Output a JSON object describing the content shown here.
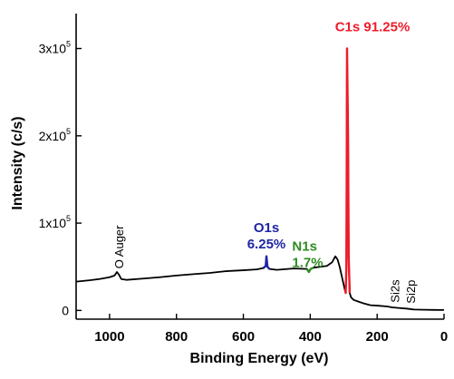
{
  "chart_data": {
    "type": "line",
    "title": "",
    "xlabel": "Binding Energy (eV)",
    "ylabel": "Intensity (c/s)",
    "xlim": [
      1100,
      0
    ],
    "x_reversed": true,
    "ylim": [
      -10000,
      340000
    ],
    "x_ticks": [
      {
        "value": 1000,
        "label": "1000"
      },
      {
        "value": 800,
        "label": "800"
      },
      {
        "value": 600,
        "label": "600"
      },
      {
        "value": 400,
        "label": "400"
      },
      {
        "value": 200,
        "label": "200"
      },
      {
        "value": 0,
        "label": "0"
      }
    ],
    "y_ticks": [
      {
        "value": 0,
        "label": "0",
        "exp": ""
      },
      {
        "value": 100000,
        "label": "1x10",
        "exp": "5"
      },
      {
        "value": 200000,
        "label": "2x10",
        "exp": "5"
      },
      {
        "value": 300000,
        "label": "3x10",
        "exp": "5"
      }
    ],
    "grid": false,
    "series": [
      {
        "color": "#000000",
        "x": [
          1100,
          1060,
          1030,
          1000,
          985,
          978,
          972,
          965,
          950,
          900,
          850,
          800,
          750,
          700,
          650,
          600,
          560,
          540,
          533,
          531,
          528,
          522,
          500,
          450,
          410,
          404,
          400,
          396,
          390,
          370,
          350,
          335,
          325,
          318,
          312,
          305,
          298,
          294,
          292,
          291,
          290,
          287,
          285,
          282,
          278,
          270,
          255,
          240,
          220,
          200,
          170,
          155,
          140,
          110,
          99,
          90,
          60,
          30,
          0
        ],
        "y": [
          33000,
          34500,
          36000,
          38000,
          40000,
          44000,
          41000,
          36000,
          35000,
          36500,
          38000,
          40000,
          41500,
          43000,
          45000,
          46000,
          47000,
          48500,
          51000,
          62000,
          50000,
          47500,
          46500,
          48000,
          47500,
          44000,
          47000,
          48000,
          49000,
          50000,
          51000,
          55000,
          62000,
          58000,
          50000,
          38000,
          26000,
          20000,
          50000,
          150000,
          300000,
          200000,
          60000,
          20000,
          15000,
          12000,
          10000,
          8000,
          6000,
          5500,
          4500,
          3500,
          3000,
          2000,
          1500,
          1000,
          800,
          600,
          500
        ]
      },
      {
        "color": "#1f25a3",
        "x": [
          540,
          533,
          531,
          528,
          522
        ],
        "y": [
          48500,
          51000,
          62000,
          50000,
          47500
        ]
      },
      {
        "color": "#2e8b22",
        "x": [
          410,
          404,
          400,
          396,
          390
        ],
        "y": [
          47500,
          44000,
          47000,
          48000,
          49000
        ]
      },
      {
        "color": "#ee1c2a",
        "x": [
          296,
          294,
          292,
          291,
          290,
          287,
          285,
          282
        ],
        "y": [
          24000,
          20000,
          50000,
          150000,
          300000,
          200000,
          60000,
          20000
        ]
      }
    ],
    "annotations": [
      {
        "id": "c1s",
        "lines": [
          "C1s 91.25%"
        ],
        "color": "#ee1c2a",
        "x": 290,
        "y": 305000,
        "rotate": false
      },
      {
        "id": "o1s",
        "lines": [
          "O1s",
          "6.25%"
        ],
        "color": "#1f25a3",
        "x": 531,
        "y": 75000,
        "rotate": false
      },
      {
        "id": "n1s",
        "lines": [
          "N1s",
          "1.7%"
        ],
        "color": "#2e8b22",
        "x": 400,
        "y": 54000,
        "rotate": false
      },
      {
        "id": "o-auger",
        "lines": [
          "O Auger"
        ],
        "color": "#000000",
        "x": 973,
        "y": 48000,
        "rotate": true
      },
      {
        "id": "si2s",
        "lines": [
          "Si2s"
        ],
        "color": "#000000",
        "x": 148,
        "y": 9000,
        "rotate": true
      },
      {
        "id": "si2p",
        "lines": [
          "Si2p"
        ],
        "color": "#000000",
        "x": 100,
        "y": 8000,
        "rotate": true
      }
    ]
  }
}
